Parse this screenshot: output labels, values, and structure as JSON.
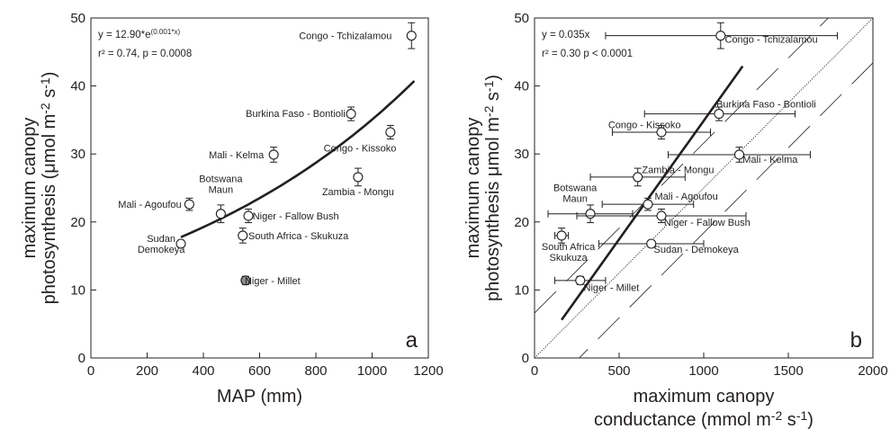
{
  "chart_data": [
    {
      "panel": "a",
      "type": "scatter",
      "xlabel": "MAP (mm)",
      "ylabel": [
        "maximum canopy",
        "photosynthesis (μmol m",
        "-2",
        " s",
        "-1",
        ")"
      ],
      "xlim": [
        0,
        1200
      ],
      "ylim": [
        0,
        50
      ],
      "xticks": [
        0,
        200,
        400,
        600,
        800,
        1000,
        1200
      ],
      "yticks": [
        0,
        10,
        20,
        30,
        40,
        50
      ],
      "annotation": {
        "line1_prefix": "y =  12.90*e",
        "line1_sup": "(0.001*x)",
        "line2": "r² = 0.74, p = 0.0008"
      },
      "fit": {
        "type": "exponential",
        "a": 12.9,
        "b": 0.001,
        "x_range": [
          320,
          1150
        ]
      },
      "points": [
        {
          "site": "Congo - Tchizalamou",
          "label_lines": [
            "Congo - Tchizalamou"
          ],
          "x": 1140,
          "y": 47.4,
          "yerr": 1.9,
          "filled": false,
          "label_x": 1070,
          "label_y": 47.4,
          "anchor": "end"
        },
        {
          "site": "Burkina Faso - Bontioli",
          "label_lines": [
            "Burkina Faso - Bontioli"
          ],
          "x": 925,
          "y": 35.9,
          "yerr": 1.0,
          "filled": false,
          "label_x": 905,
          "label_y": 36.0,
          "anchor": "end"
        },
        {
          "site": "Congo - Kissoko",
          "label_lines": [
            "Congo - Kissoko"
          ],
          "x": 1065,
          "y": 33.2,
          "yerr": 1.0,
          "filled": false,
          "label_x": 1086,
          "label_y": 30.9,
          "anchor": "end"
        },
        {
          "site": "Mali - Kelma",
          "label_lines": [
            "Mali - Kelma"
          ],
          "x": 650,
          "y": 29.9,
          "yerr": 1.1,
          "filled": false,
          "label_x": 615,
          "label_y": 29.9,
          "anchor": "end"
        },
        {
          "site": "Zambia - Mongu",
          "label_lines": [
            "Zambia - Mongu"
          ],
          "x": 950,
          "y": 26.6,
          "yerr": 1.3,
          "filled": false,
          "label_x": 950,
          "label_y": 24.5,
          "anchor": "middle"
        },
        {
          "site": "Mali - Agoufou",
          "label_lines": [
            "Mali - Agoufou"
          ],
          "x": 350,
          "y": 22.6,
          "yerr": 0.9,
          "filled": false,
          "label_x": 322,
          "label_y": 22.6,
          "anchor": "end"
        },
        {
          "site": "Botswana Maun",
          "label_lines": [
            "Botswana",
            "Maun"
          ],
          "x": 462,
          "y": 21.2,
          "yerr": 1.3,
          "filled": false,
          "label_x": 462,
          "label_y": 25.6,
          "anchor": "middle"
        },
        {
          "site": "Niger - Fallow Bush",
          "label_lines": [
            "Niger - Fallow Bush"
          ],
          "x": 560,
          "y": 20.9,
          "yerr": 1.0,
          "filled": false,
          "label_x": 575,
          "label_y": 20.9,
          "anchor": "start"
        },
        {
          "site": "South Africa - Skukuza",
          "label_lines": [
            "South Africa - Skukuza"
          ],
          "x": 540,
          "y": 18.0,
          "yerr": 1.1,
          "filled": false,
          "label_x": 560,
          "label_y": 18.0,
          "anchor": "start"
        },
        {
          "site": "Sudan Demokeya",
          "label_lines": [
            "Sudan",
            "Demokeya"
          ],
          "x": 320,
          "y": 16.8,
          "yerr": 0.5,
          "filled": false,
          "label_x": 250,
          "label_y": 16.8,
          "anchor": "middle"
        },
        {
          "site": "Niger - Millet",
          "label_lines": [
            "Niger - Millet"
          ],
          "x": 550,
          "y": 11.4,
          "yerr": 0.6,
          "filled": true,
          "label_x": 547,
          "label_y": 11.4,
          "anchor": "start"
        }
      ],
      "panel_letter": "a"
    },
    {
      "panel": "b",
      "type": "scatter",
      "xlabel": [
        "maximum canopy",
        "conductance (mmol m",
        "-2",
        " s",
        "-1",
        ")"
      ],
      "ylabel": [
        "maximum canopy",
        "photosynthesis μmol m",
        "-2",
        " s",
        "-1",
        ")"
      ],
      "xlim": [
        0,
        2000
      ],
      "ylim": [
        0,
        50
      ],
      "xticks": [
        0,
        500,
        1000,
        1500,
        2000
      ],
      "yticks": [
        0,
        10,
        20,
        30,
        40,
        50
      ],
      "annotation": {
        "line1": "y = 0.035x",
        "line2": "r² = 0.30 p < 0.0001"
      },
      "fit": {
        "type": "linear",
        "x_range": [
          160,
          1230
        ],
        "y_range": [
          5.6,
          42.9
        ]
      },
      "one_to_one_slope": 0.025,
      "one_to_one_offsets": [
        -6.6,
        0,
        6.6
      ],
      "points": [
        {
          "site": "Congo - Tchizalamou",
          "label_lines": [
            "Congo - Tchizalamou"
          ],
          "x": 1100,
          "y": 47.4,
          "yerr": 1.9,
          "xerr_low": 420,
          "xerr_high": 1790,
          "label_x": 1125,
          "label_y": 46.9,
          "anchor": "start"
        },
        {
          "site": "Burkina Faso - Bontioli",
          "label_lines": [
            "Burkina Faso - Bontioli"
          ],
          "x": 1090,
          "y": 35.9,
          "yerr": 1.0,
          "xerr_low": 650,
          "xerr_high": 1540,
          "label_x": 1075,
          "label_y": 37.4,
          "anchor": "start"
        },
        {
          "site": "Congo - Kissoko",
          "label_lines": [
            "Congo - Kissoko"
          ],
          "x": 750,
          "y": 33.2,
          "yerr": 1.0,
          "xerr_low": 460,
          "xerr_high": 1040,
          "label_x": 650,
          "label_y": 34.3,
          "anchor": "middle"
        },
        {
          "site": "Mali - Kelma",
          "label_lines": [
            "Mali - Kelma"
          ],
          "x": 1210,
          "y": 29.9,
          "yerr": 1.1,
          "xerr_low": 790,
          "xerr_high": 1630,
          "label_x": 1230,
          "label_y": 29.2,
          "anchor": "start"
        },
        {
          "site": "Zambia - Mongu",
          "label_lines": [
            "Zambia - Mongu"
          ],
          "x": 610,
          "y": 26.6,
          "yerr": 1.3,
          "xerr_low": 330,
          "xerr_high": 890,
          "label_x": 635,
          "label_y": 27.7,
          "anchor": "start"
        },
        {
          "site": "Mali - Agoufou",
          "label_lines": [
            "Mali - Agoufou"
          ],
          "x": 670,
          "y": 22.6,
          "yerr": 0.9,
          "xerr_low": 400,
          "xerr_high": 940,
          "label_x": 710,
          "label_y": 23.8,
          "anchor": "start"
        },
        {
          "site": "Botswana Maun",
          "label_lines": [
            "Botswana",
            "Maun"
          ],
          "x": 330,
          "y": 21.2,
          "yerr": 1.3,
          "xerr_low": 80,
          "xerr_high": 580,
          "label_x": 240,
          "label_y": 24.3,
          "anchor": "middle"
        },
        {
          "site": "Niger - Fallow Bush",
          "label_lines": [
            "Niger - Fallow Bush"
          ],
          "x": 750,
          "y": 20.9,
          "yerr": 1.0,
          "xerr_low": 250,
          "xerr_high": 1250,
          "label_x": 765,
          "label_y": 20.0,
          "anchor": "start"
        },
        {
          "site": "South Africa Skukuza",
          "label_lines": [
            "South Africa",
            "Skukuza"
          ],
          "x": 160,
          "y": 18.0,
          "yerr": 1.1,
          "xerr_low": 120,
          "xerr_high": 200,
          "label_x": 200,
          "label_y": 15.6,
          "anchor": "middle"
        },
        {
          "site": "Sudan - Demokeya",
          "label_lines": [
            "Sudan - Demokeya"
          ],
          "x": 690,
          "y": 16.8,
          "yerr": 0.5,
          "xerr_low": 380,
          "xerr_high": 1000,
          "label_x": 705,
          "label_y": 16.0,
          "anchor": "start"
        },
        {
          "site": "Niger - Millet",
          "label_lines": [
            "Niger - Millet"
          ],
          "x": 270,
          "y": 11.4,
          "yerr": 0.6,
          "xerr_low": 120,
          "xerr_high": 420,
          "label_x": 290,
          "label_y": 10.4,
          "anchor": "start"
        }
      ],
      "panel_letter": "b"
    }
  ]
}
